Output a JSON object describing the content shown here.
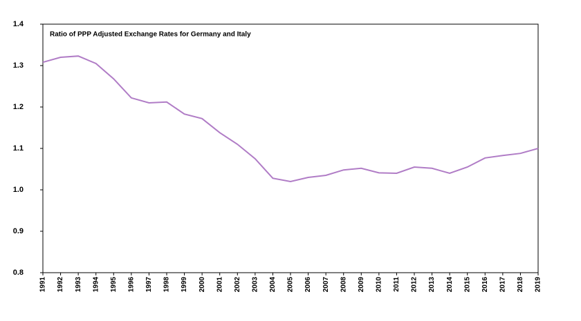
{
  "chart_data": {
    "type": "line",
    "title": "Ratio of PPP Adjusted Exchange Rates for Germany and Italy",
    "categories": [
      "1991",
      "1992",
      "1993",
      "1994",
      "1995",
      "1996",
      "1997",
      "1998",
      "1999",
      "2000",
      "2001",
      "2002",
      "2003",
      "2004",
      "2005",
      "2006",
      "2007",
      "2008",
      "2009",
      "2010",
      "2011",
      "2012",
      "2013",
      "2014",
      "2015",
      "2016",
      "2017",
      "2018",
      "2019"
    ],
    "series": [
      {
        "color": "#b07cc6",
        "values": [
          1.308,
          1.32,
          1.323,
          1.305,
          1.268,
          1.222,
          1.21,
          1.212,
          1.183,
          1.172,
          1.138,
          1.11,
          1.075,
          1.028,
          1.02,
          1.03,
          1.035,
          1.048,
          1.052,
          1.041,
          1.04,
          1.055,
          1.052,
          1.04,
          1.055,
          1.077,
          1.083,
          1.088,
          1.1
        ]
      }
    ],
    "ylim": [
      0.8,
      1.4
    ],
    "yticks": [
      0.8,
      0.9,
      {
        "value": 1,
        "label": "1.0"
      },
      1.1,
      1.2,
      1.3,
      1.4
    ],
    "grid": false
  }
}
